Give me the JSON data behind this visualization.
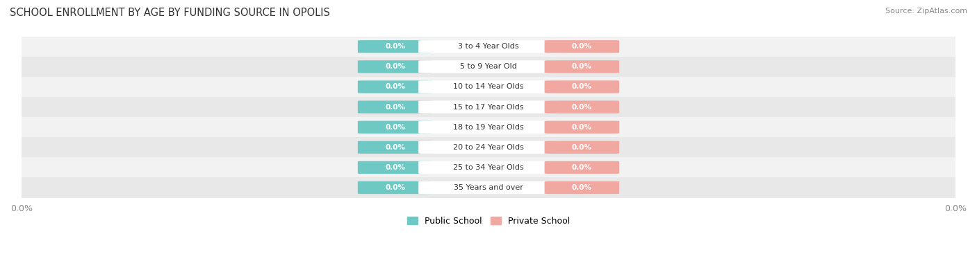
{
  "title": "SCHOOL ENROLLMENT BY AGE BY FUNDING SOURCE IN OPOLIS",
  "source_text": "Source: ZipAtlas.com",
  "categories": [
    "3 to 4 Year Olds",
    "5 to 9 Year Old",
    "10 to 14 Year Olds",
    "15 to 17 Year Olds",
    "18 to 19 Year Olds",
    "20 to 24 Year Olds",
    "25 to 34 Year Olds",
    "35 Years and over"
  ],
  "public_values": [
    0.0,
    0.0,
    0.0,
    0.0,
    0.0,
    0.0,
    0.0,
    0.0
  ],
  "private_values": [
    0.0,
    0.0,
    0.0,
    0.0,
    0.0,
    0.0,
    0.0,
    0.0
  ],
  "public_color": "#6ec9c4",
  "private_color": "#f0a8a0",
  "row_bg_colors": [
    "#f2f2f2",
    "#e8e8e8"
  ],
  "title_color": "#333333",
  "value_text_color": "#ffffff",
  "label_text_color": "#333333",
  "axis_tick_color": "#888888",
  "axis_label": "0.0%",
  "bar_height": 0.6,
  "xlim": [
    -1.0,
    1.0
  ],
  "figsize": [
    14.06,
    3.77
  ],
  "dpi": 100,
  "legend_labels": [
    "Public School",
    "Private School"
  ]
}
